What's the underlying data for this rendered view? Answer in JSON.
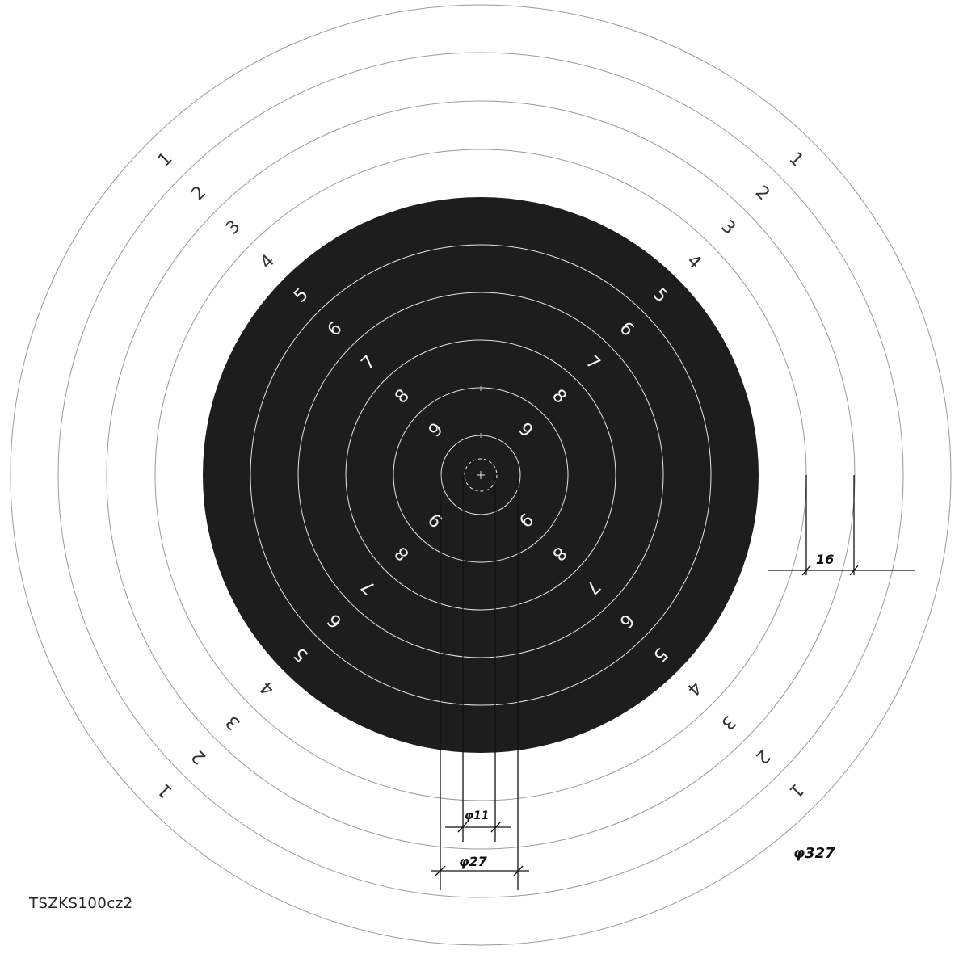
{
  "target": {
    "title_code": "TSZKS100cz2",
    "outer_scores": [
      "1",
      "2",
      "3",
      "4"
    ],
    "inner_scores": [
      "5",
      "6",
      "7",
      "8",
      "9"
    ],
    "dimensions": {
      "outer_diameter": "φ327",
      "ring_width": "16",
      "inner_ten_diameter": "φ11",
      "ten_ring_diameter": "φ27"
    },
    "colors": {
      "paper": "#ffffff",
      "black_aiming_area": "#1d1d1d",
      "ring_line_outer": "#9a9a9a",
      "ring_line_inner": "#e6e6e6",
      "dimension_line": "#111111"
    }
  }
}
